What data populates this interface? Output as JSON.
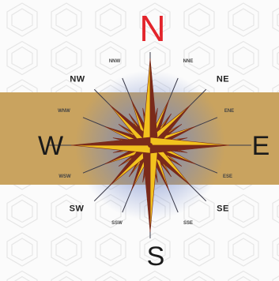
{
  "compass": {
    "labels": {
      "N": "N",
      "S": "S",
      "E": "E",
      "W": "W",
      "NE": "NE",
      "NW": "NW",
      "SE": "SE",
      "SW": "SW",
      "NNE": "NNE",
      "NNW": "NNW",
      "ENE": "ENE",
      "ESE": "ESE",
      "SSE": "SSE",
      "SSW": "SSW",
      "WNW": "WNW",
      "WSW": "WSW"
    }
  },
  "colors": {
    "north": "#e3242b",
    "band": "#c9a35f",
    "background": "#fbfbfb",
    "rose_gold": "#f2c21e",
    "rose_dark": "#7a2a1a",
    "glow": "#6f86c9"
  }
}
